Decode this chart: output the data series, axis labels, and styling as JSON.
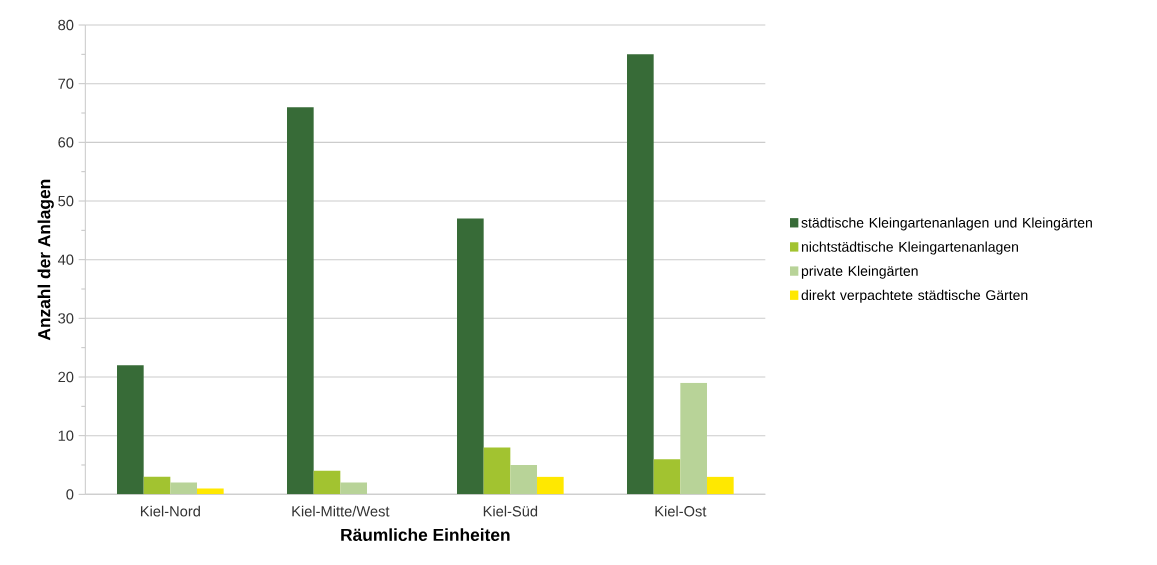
{
  "chart_data": {
    "type": "bar",
    "xlabel": "Räumliche Einheiten",
    "ylabel": "Anzahl der Anlagen",
    "categories": [
      "Kiel-Nord",
      "Kiel-Mitte/West",
      "Kiel-Süd",
      "Kiel-Ost"
    ],
    "series": [
      {
        "name": "städtische Kleingartenanlagen und Kleingärten",
        "color": "#376b37",
        "values": [
          22,
          66,
          47,
          75
        ]
      },
      {
        "name": "nichtstädtische Kleingartenanlagen",
        "color": "#a2c330",
        "values": [
          3,
          4,
          8,
          6
        ]
      },
      {
        "name": "private Kleingärten",
        "color": "#b8d398",
        "values": [
          2,
          2,
          5,
          19
        ]
      },
      {
        "name": "direkt verpachtete städtische Gärten",
        "color": "#ffe800",
        "values": [
          1,
          0,
          3,
          3
        ]
      }
    ],
    "ylim": [
      0,
      80
    ],
    "yticks": [
      0,
      10,
      20,
      30,
      40,
      50,
      60,
      70,
      80
    ],
    "grid": "y",
    "legend": "right"
  }
}
